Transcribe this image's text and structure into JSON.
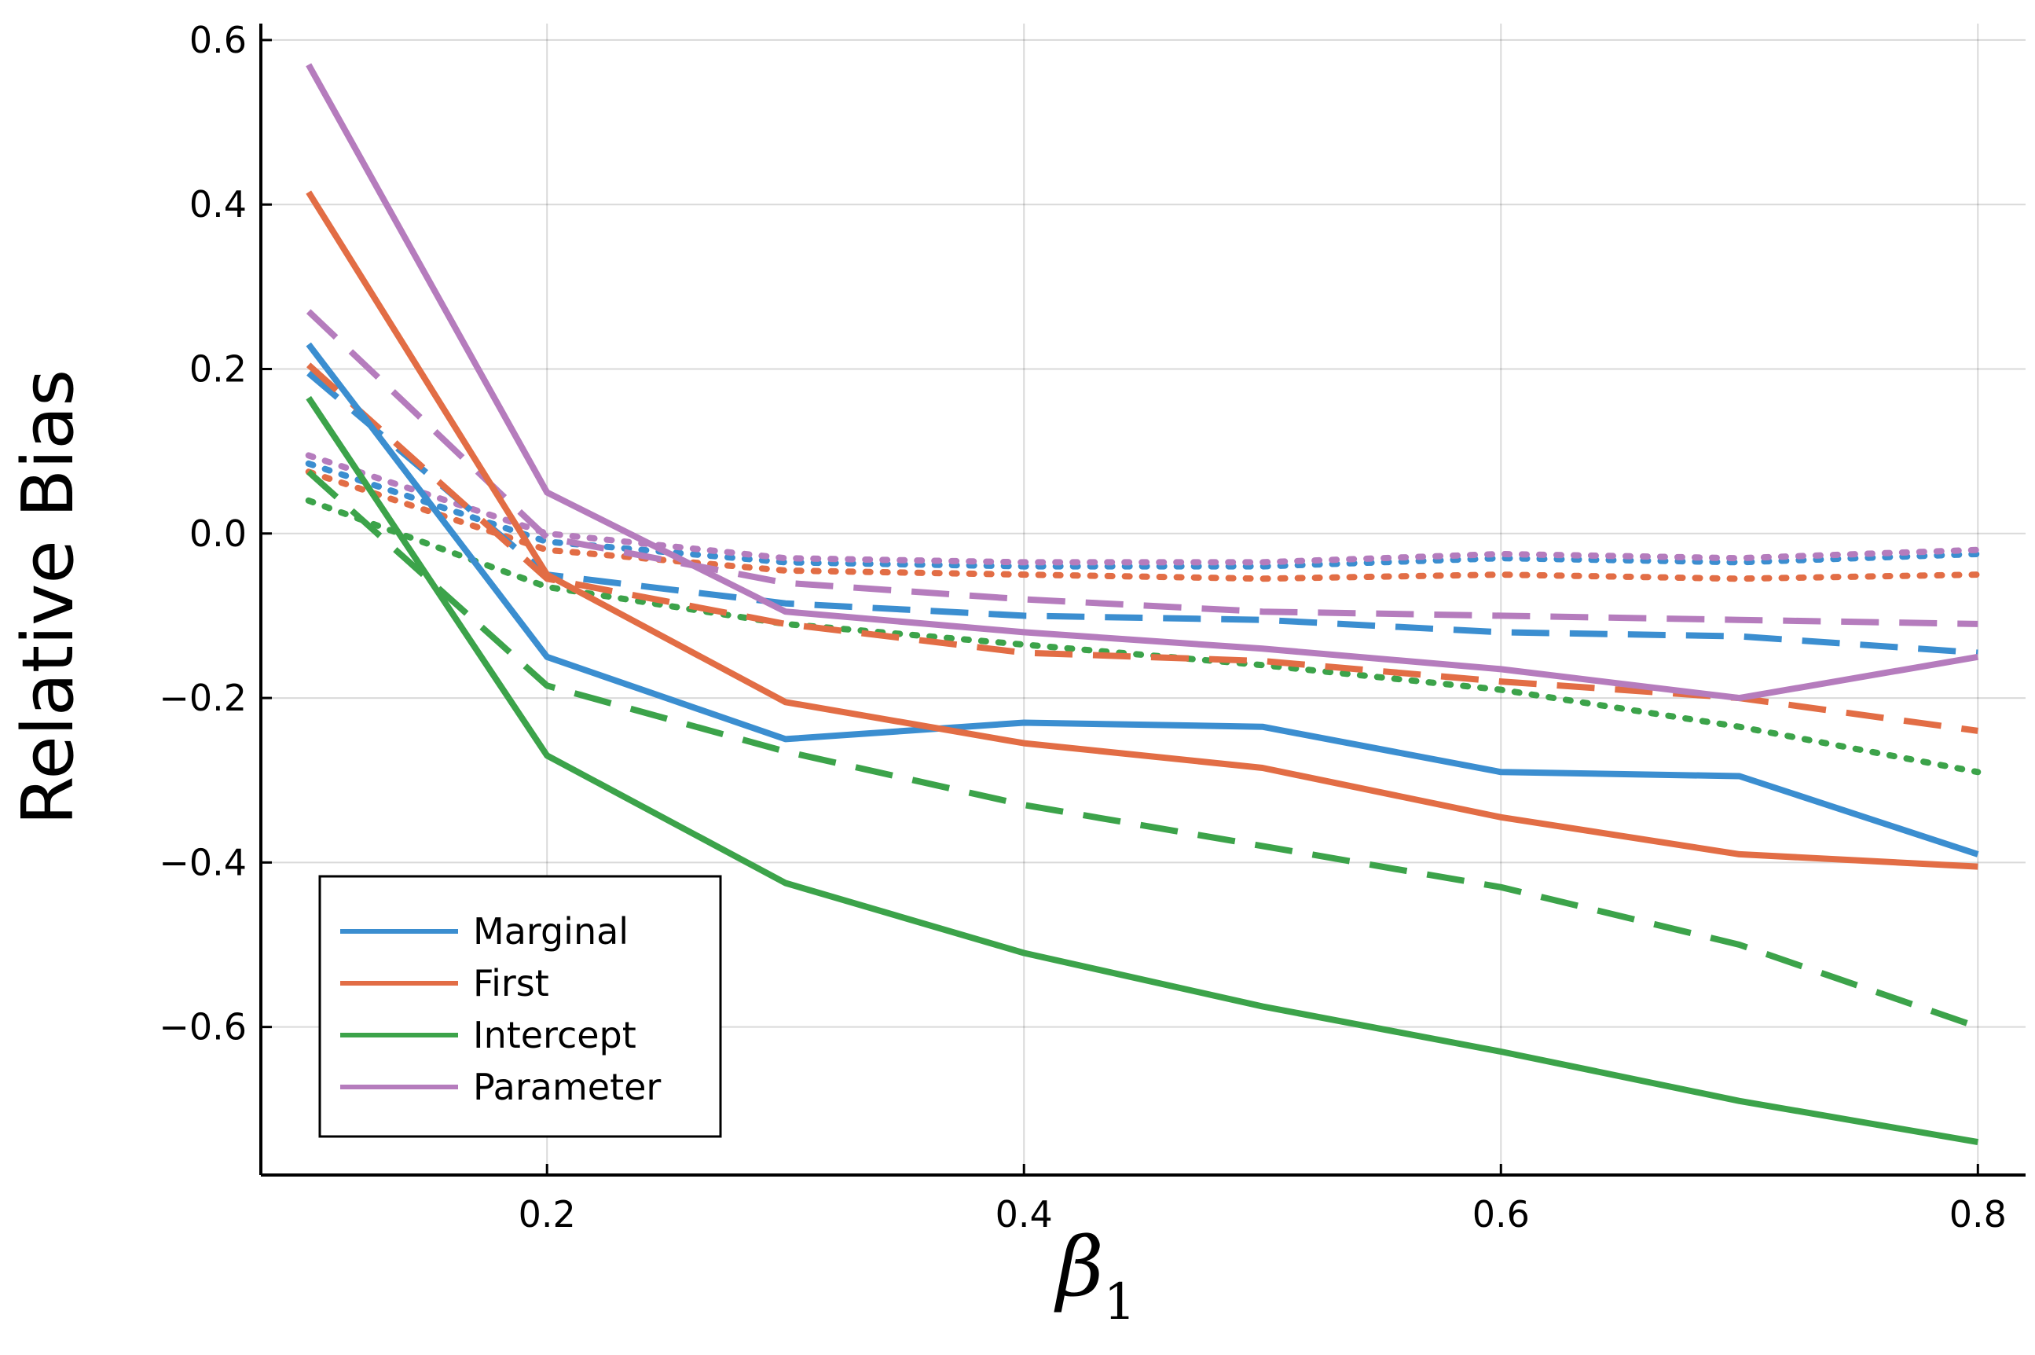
{
  "chart_data": {
    "type": "line",
    "title": "",
    "xlabel": "β",
    "xlabel_subscript": "1",
    "ylabel": "Relative Bias",
    "xlim": [
      0.08,
      0.82
    ],
    "ylim": [
      -0.78,
      0.62
    ],
    "grid": true,
    "legend_position": "bottom-left",
    "x": [
      0.1,
      0.2,
      0.3,
      0.4,
      0.5,
      0.6,
      0.7,
      0.8
    ],
    "x_ticks": [
      0.2,
      0.4,
      0.6,
      0.8
    ],
    "x_tick_labels": [
      "0.2",
      "0.4",
      "0.6",
      "0.8"
    ],
    "y_ticks": [
      -0.6,
      -0.4,
      -0.2,
      0.0,
      0.2,
      0.4,
      0.6
    ],
    "y_tick_labels": [
      "−0.6",
      "−0.4",
      "−0.2",
      "0.0",
      "0.2",
      "0.4",
      "0.6"
    ],
    "legend": [
      {
        "name": "Marginal",
        "color": "#3b8ed0"
      },
      {
        "name": "First",
        "color": "#e26d45"
      },
      {
        "name": "Intercept",
        "color": "#3ca34a"
      },
      {
        "name": "Parameter",
        "color": "#b57cbd"
      }
    ],
    "series": [
      {
        "name": "Marginal",
        "style": "solid",
        "color": "#3b8ed0",
        "values": [
          0.23,
          -0.15,
          -0.25,
          -0.23,
          -0.235,
          -0.29,
          -0.295,
          -0.39
        ]
      },
      {
        "name": "First",
        "style": "solid",
        "color": "#e26d45",
        "values": [
          0.415,
          -0.05,
          -0.205,
          -0.255,
          -0.285,
          -0.345,
          -0.39,
          -0.405
        ]
      },
      {
        "name": "Intercept",
        "style": "solid",
        "color": "#3ca34a",
        "values": [
          0.165,
          -0.27,
          -0.425,
          -0.51,
          -0.575,
          -0.63,
          -0.69,
          -0.74
        ]
      },
      {
        "name": "Parameter",
        "style": "solid",
        "color": "#b57cbd",
        "values": [
          0.57,
          0.05,
          -0.095,
          -0.12,
          -0.14,
          -0.165,
          -0.2,
          -0.15
        ]
      },
      {
        "name": "Marginal (dashed)",
        "style": "dashed",
        "color": "#3b8ed0",
        "values": [
          0.195,
          -0.05,
          -0.085,
          -0.1,
          -0.105,
          -0.12,
          -0.125,
          -0.145
        ]
      },
      {
        "name": "First (dashed)",
        "style": "dashed",
        "color": "#e26d45",
        "values": [
          0.205,
          -0.055,
          -0.11,
          -0.145,
          -0.155,
          -0.18,
          -0.2,
          -0.24
        ]
      },
      {
        "name": "Intercept (dashed)",
        "style": "dashed",
        "color": "#3ca34a",
        "values": [
          0.075,
          -0.185,
          -0.265,
          -0.33,
          -0.38,
          -0.43,
          -0.5,
          -0.6
        ]
      },
      {
        "name": "Parameter (dashed)",
        "style": "dashed",
        "color": "#b57cbd",
        "values": [
          0.27,
          -0.005,
          -0.06,
          -0.08,
          -0.095,
          -0.1,
          -0.105,
          -0.11
        ]
      },
      {
        "name": "Marginal (dotted)",
        "style": "dotted",
        "color": "#3b8ed0",
        "values": [
          0.085,
          -0.01,
          -0.035,
          -0.04,
          -0.04,
          -0.03,
          -0.035,
          -0.025
        ]
      },
      {
        "name": "First (dotted)",
        "style": "dotted",
        "color": "#e26d45",
        "values": [
          0.075,
          -0.02,
          -0.045,
          -0.05,
          -0.055,
          -0.05,
          -0.055,
          -0.05
        ]
      },
      {
        "name": "Intercept (dotted)",
        "style": "dotted",
        "color": "#3ca34a",
        "values": [
          0.04,
          -0.065,
          -0.11,
          -0.135,
          -0.16,
          -0.19,
          -0.235,
          -0.29
        ]
      },
      {
        "name": "Parameter (dotted)",
        "style": "dotted",
        "color": "#b57cbd",
        "values": [
          0.095,
          0.0,
          -0.03,
          -0.035,
          -0.035,
          -0.025,
          -0.03,
          -0.02
        ]
      }
    ]
  }
}
